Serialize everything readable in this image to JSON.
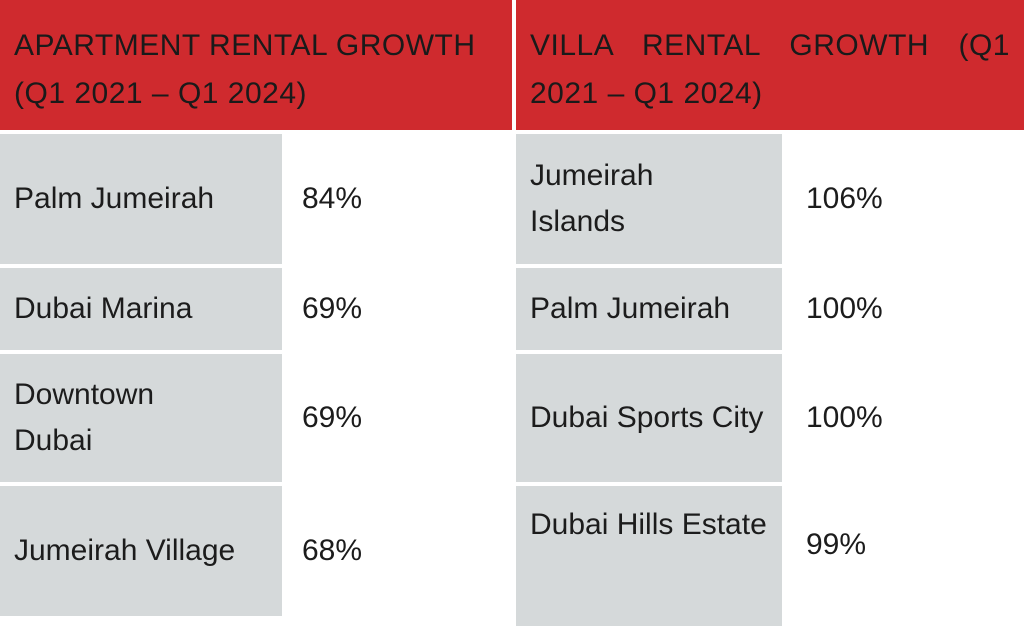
{
  "apartment": {
    "title": "APARTMENT RENTAL GROWTH (Q1 2021 – Q1 2024)",
    "rows": [
      {
        "area": "Palm Jumeirah",
        "growth": "84%"
      },
      {
        "area": "Dubai Marina",
        "growth": "69%"
      },
      {
        "area": "Downtown Dubai",
        "growth": "69%"
      },
      {
        "area": "Jumeirah Village",
        "growth": "68%"
      }
    ]
  },
  "villa": {
    "title": "VILLA RENTAL GROWTH (Q1 2021 – Q1 2024)",
    "rows": [
      {
        "area": "Jumeirah Islands",
        "growth": "106%"
      },
      {
        "area": "Palm Jumeirah",
        "growth": "100%"
      },
      {
        "area": "Dubai Sports City",
        "growth": "100%"
      },
      {
        "area": "Dubai Hills Estate",
        "growth": "99%"
      }
    ]
  },
  "colors": {
    "header": "#cf2a2e",
    "cell": "#d5d9da"
  }
}
